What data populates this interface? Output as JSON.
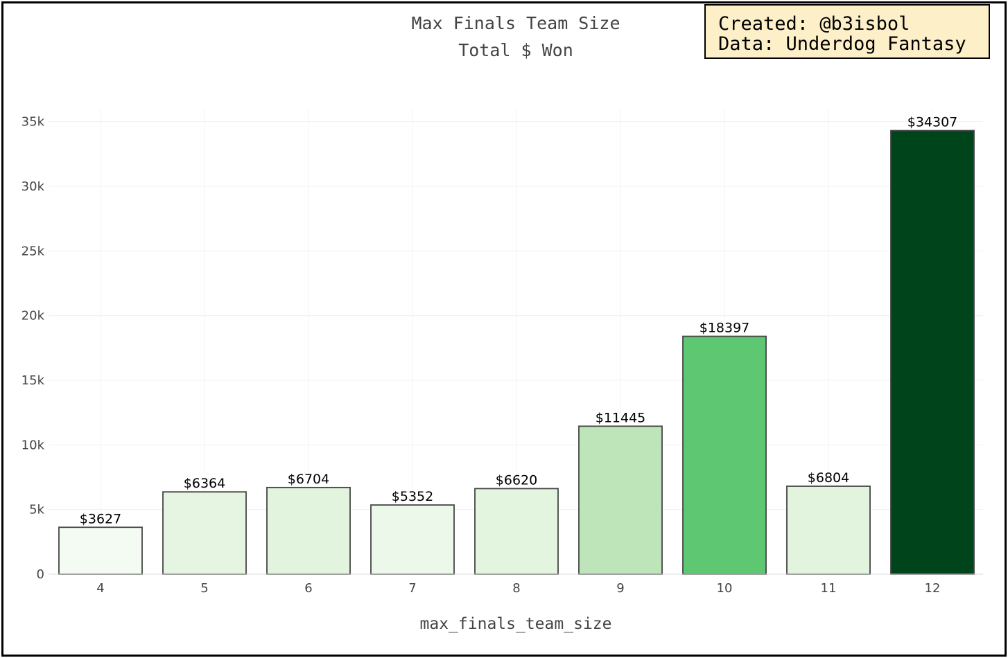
{
  "annotation": {
    "created": "Created: @b3isbol",
    "data_source": "Data: Underdog Fantasy"
  },
  "chart_data": {
    "type": "bar",
    "title": "Max Finals Team Size",
    "subtitle": "Total $ Won",
    "xlabel": "max_finals_team_size",
    "ylabel": "",
    "categories": [
      "4",
      "5",
      "6",
      "7",
      "8",
      "9",
      "10",
      "11",
      "12"
    ],
    "values": [
      3627,
      6364,
      6704,
      5352,
      6620,
      11445,
      18397,
      6804,
      34307
    ],
    "data_labels": [
      "$3627",
      "$6364",
      "$6704",
      "$5352",
      "$6620",
      "$11445",
      "$18397",
      "$6804",
      "$34307"
    ],
    "colors": [
      "#f4fbf2",
      "#e5f5e1",
      "#e3f4de",
      "#ecf8e9",
      "#e4f5df",
      "#bde5b9",
      "#5ec772",
      "#e3f4de",
      "#00441b"
    ],
    "ylim": [
      0,
      35000
    ],
    "yticks": [
      0,
      5000,
      10000,
      15000,
      20000,
      25000,
      30000,
      35000
    ],
    "ytick_labels": [
      "0",
      "5k",
      "10k",
      "15k",
      "20k",
      "25k",
      "30k",
      "35k"
    ],
    "grid": true,
    "legend": "none"
  }
}
